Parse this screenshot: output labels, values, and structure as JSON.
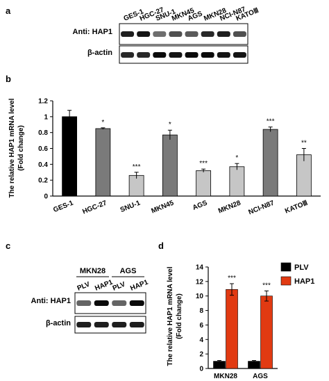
{
  "panels": {
    "a": {
      "letter": "a",
      "lanes": [
        "GES-1",
        "HGC-27",
        "SNU-1",
        "MKN45",
        "AGS",
        "MKN28",
        "NCI-N87",
        "KATOⅢ"
      ],
      "blots": [
        {
          "label": "Anti: HAP1",
          "intensities": [
            0.85,
            0.9,
            0.45,
            0.6,
            0.55,
            0.8,
            0.85,
            0.6
          ]
        },
        {
          "label": "β-actin",
          "intensities": [
            0.8,
            0.8,
            0.95,
            0.9,
            0.95,
            0.95,
            0.9,
            0.9
          ]
        }
      ]
    },
    "b": {
      "letter": "b"
    },
    "c": {
      "letter": "c",
      "groups": [
        "MKN28",
        "AGS"
      ],
      "lanes": [
        "PLV",
        "HAP1",
        "PLV",
        "HAP1"
      ],
      "blots": [
        {
          "label": "Anti: HAP1",
          "intensities": [
            0.5,
            0.95,
            0.5,
            0.95
          ]
        },
        {
          "label": "β-actin",
          "intensities": [
            0.85,
            0.85,
            0.85,
            0.85
          ]
        }
      ]
    },
    "d": {
      "letter": "d"
    }
  },
  "colors": {
    "black": "#000000",
    "dark_gray": "#7a7a7a",
    "light_gray": "#c6c6c6",
    "red": "#e13a12"
  },
  "chart_data": [
    {
      "type": "bar",
      "panel": "b",
      "title": "",
      "ylabel": "The relative HAP1 mRNA level",
      "ylabel2": "(Fold change)",
      "ylim": [
        0,
        1.2
      ],
      "yticks": [
        "0",
        "0.2",
        "0.4",
        "0.6",
        "0.8",
        "1",
        "1.2"
      ],
      "categories": [
        "GES-1",
        "HGC-27",
        "SNU-1",
        "MKN45",
        "AGS",
        "MKN28",
        "NCI-N87",
        "KATOⅢ"
      ],
      "values": [
        1.0,
        0.85,
        0.26,
        0.77,
        0.32,
        0.37,
        0.84,
        0.52
      ],
      "errors": [
        0.08,
        0.01,
        0.04,
        0.06,
        0.02,
        0.04,
        0.03,
        0.08
      ],
      "significance": [
        "",
        "*",
        "***",
        "*",
        "***",
        "*",
        "***",
        "**"
      ],
      "bar_colors": [
        "#000000",
        "#7a7a7a",
        "#c6c6c6",
        "#7a7a7a",
        "#c6c6c6",
        "#c6c6c6",
        "#7a7a7a",
        "#c6c6c6"
      ]
    },
    {
      "type": "bar",
      "panel": "d",
      "title": "",
      "ylabel": "The relative HAP1 mRNA level",
      "ylabel2": "(Fold change)",
      "ylim": [
        0,
        14
      ],
      "yticks": [
        "0",
        "2",
        "4",
        "6",
        "8",
        "10",
        "12",
        "14"
      ],
      "categories": [
        "MKN28",
        "AGS"
      ],
      "series": [
        {
          "name": "PLV",
          "color": "#000000",
          "values": [
            1.0,
            1.0
          ],
          "errors": [
            0.1,
            0.1
          ]
        },
        {
          "name": "HAP1",
          "color": "#e13a12",
          "values": [
            10.9,
            10.0
          ],
          "errors": [
            0.8,
            0.7
          ]
        }
      ],
      "significance": [
        "***",
        "***"
      ],
      "legend": "top-right"
    }
  ]
}
